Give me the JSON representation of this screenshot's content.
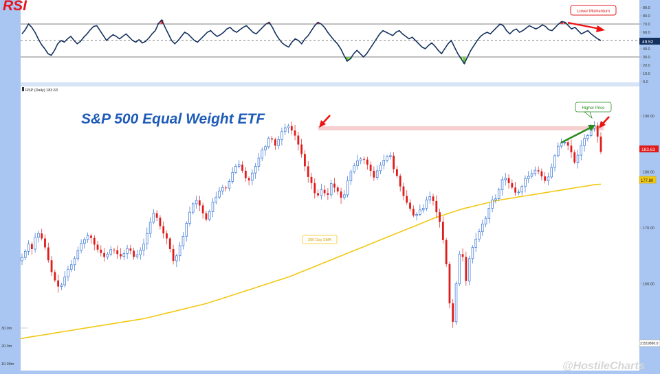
{
  "rsi": {
    "title": "RSI",
    "levels": [
      70,
      50,
      30
    ],
    "axis_ticks": [
      "90.0",
      "80.0",
      "70.0",
      "60.0",
      "50.0",
      "40.0",
      "30.0",
      "20.0",
      "10.0",
      "0.0"
    ],
    "current_label": "49.52",
    "annotation": "Lower Momentum"
  },
  "price": {
    "header": "RSP (Daily) 183.63",
    "title": "S&P 500 Equal Weight ETF",
    "axis_ticks": [
      "190.00",
      "180.00",
      "170.00",
      "160.00"
    ],
    "current_label": "183.63",
    "sma_label": "177.80",
    "sma_annotation": "200 Day SMA",
    "higher_annotation": "Higher Price"
  },
  "volume": {
    "axis_ticks": [
      "30.0m",
      "20.0m",
      "10.00m"
    ],
    "current_label": "21519890.0"
  },
  "watermark": "@HostileCharts",
  "colors": {
    "up": "#2f6fd6",
    "down": "#e01b1b",
    "rsi": "#13305e",
    "sma": "#f2c811",
    "arrow_red": "#ee1111",
    "arrow_green": "#2a8a1e",
    "bg": "#ffffff",
    "frame": "#a9c6f2"
  },
  "chart_data": [
    {
      "type": "line",
      "series": [
        {
          "values": [
            58,
            63,
            70,
            66,
            60,
            52,
            45,
            40,
            34,
            32,
            38,
            46,
            50,
            48,
            52,
            55,
            50,
            46,
            49,
            54,
            58,
            63,
            67,
            68,
            62,
            56,
            50,
            54,
            57,
            55,
            52,
            55,
            58,
            54,
            50,
            48,
            51,
            47,
            49,
            53,
            58,
            62,
            71,
            75,
            66,
            58,
            50,
            46,
            50,
            55,
            60,
            58,
            54,
            50,
            48,
            52,
            56,
            60,
            62,
            58,
            55,
            57,
            60,
            64,
            66,
            62,
            60,
            63,
            66,
            68,
            64,
            60,
            58,
            62,
            66,
            70,
            72,
            66,
            58,
            52,
            47,
            44,
            42,
            48,
            52,
            50,
            46,
            52,
            56,
            62,
            68,
            72,
            70,
            66,
            60,
            55,
            50,
            46,
            40,
            32,
            25,
            28,
            34,
            38,
            34,
            30,
            34,
            40,
            46,
            52,
            58,
            62,
            60,
            58,
            56,
            60,
            62,
            58,
            55,
            52,
            54,
            50,
            46,
            42,
            40,
            44,
            47,
            43,
            38,
            34,
            40,
            46,
            50,
            42,
            34,
            28,
            22,
            30,
            38,
            44,
            50,
            55,
            58,
            60,
            58,
            62,
            66,
            70,
            68,
            62,
            58,
            62,
            64,
            60,
            62,
            65,
            68,
            66,
            64,
            66,
            69,
            67,
            63,
            62,
            66,
            70,
            73,
            72,
            68,
            64,
            66,
            62,
            58,
            60,
            62,
            58,
            55,
            52,
            50
          ]
        }
      ],
      "ylim": [
        0,
        100
      ]
    },
    {
      "type": "bar",
      "series": [
        {
          "values": [
            164.7,
            165.8,
            167.1,
            166.2,
            168.3,
            169.0,
            168.1,
            166.5,
            164.2,
            162.1,
            160.6,
            159.5,
            159.8,
            161.2,
            162.6,
            163.4,
            164.5,
            166.0,
            167.2,
            167.9,
            168.6,
            168.2,
            167.0,
            166.1,
            165.5,
            164.8,
            165.3,
            166.1,
            166.0,
            165.3,
            164.9,
            165.4,
            166.3,
            165.9,
            164.8,
            165.2,
            166.0,
            167.1,
            169.0,
            171.0,
            172.6,
            171.8,
            170.3,
            169.0,
            168.1,
            166.2,
            164.1,
            165.0,
            166.8,
            168.5,
            170.8,
            172.8,
            174.3,
            174.9,
            174.0,
            172.6,
            171.5,
            172.9,
            174.6,
            175.5,
            176.6,
            177.2,
            177.1,
            178.3,
            179.9,
            181.0,
            181.3,
            180.2,
            178.9,
            178.5,
            179.8,
            181.0,
            182.5,
            183.9,
            184.5,
            186.0,
            185.8,
            184.7,
            185.8,
            187.2,
            187.9,
            188.2,
            187.4,
            186.5,
            184.9,
            183.2,
            181.0,
            179.1,
            178.0,
            176.2,
            175.8,
            176.8,
            176.2,
            175.9,
            177.9,
            177.2,
            176.5,
            175.4,
            175.9,
            178.4,
            180.0,
            181.1,
            182.0,
            182.3,
            182.2,
            181.3,
            180.2,
            179.0,
            180.2,
            181.2,
            182.1,
            182.7,
            182.9,
            180.5,
            179.3,
            177.4,
            175.7,
            174.5,
            173.4,
            172.2,
            172.4,
            173.2,
            173.5,
            175.0,
            175.6,
            174.8,
            172.8,
            171.1,
            167.8,
            163.5,
            156.5,
            153.2,
            160.0,
            165.3,
            164.8,
            160.5,
            164.5,
            166.5,
            168.0,
            169.3,
            170.7,
            171.7,
            173.5,
            175.0,
            175.2,
            176.8,
            178.6,
            178.9,
            178.0,
            177.2,
            176.3,
            176.4,
            177.4,
            178.8,
            179.2,
            179.7,
            180.3,
            180.1,
            179.2,
            178.4,
            179.1,
            180.8,
            182.9,
            184.6,
            185.2,
            185.3,
            184.7,
            183.5,
            181.7,
            183.0,
            184.7,
            186.0,
            186.5,
            187.8,
            188.3,
            186.3,
            183.6
          ]
        }
      ],
      "ylim": [
        150,
        194
      ]
    },
    {
      "type": "line",
      "series": [
        {
          "values": [
            150.2,
            150.4,
            150.6,
            150.8,
            151.0,
            151.2,
            151.4,
            151.6,
            151.8,
            152.0,
            152.2,
            152.4,
            152.6,
            152.8,
            153.0,
            153.2,
            153.4,
            153.6,
            153.8,
            154.1,
            154.4,
            154.7,
            155.0,
            155.3,
            155.6,
            155.9,
            156.2,
            156.5,
            156.9,
            157.3,
            157.7,
            158.1,
            158.5,
            158.9,
            159.3,
            159.7,
            160.1,
            160.5,
            160.9,
            161.3,
            161.8,
            162.3,
            162.8,
            163.3,
            163.8,
            164.3,
            164.8,
            165.3,
            165.8,
            166.3,
            166.8,
            167.3,
            167.8,
            168.3,
            168.8,
            169.3,
            169.8,
            170.3,
            170.8,
            171.3,
            171.8,
            172.2,
            172.6,
            173.0,
            173.4,
            173.7,
            174.0,
            174.3,
            174.6,
            174.9,
            175.1,
            175.3,
            175.5,
            175.7,
            175.9,
            176.1,
            176.3,
            176.5,
            176.7,
            176.9,
            177.1,
            177.3,
            177.5,
            177.7,
            177.8
          ]
        }
      ],
      "ylim": [
        150,
        194
      ]
    }
  ]
}
